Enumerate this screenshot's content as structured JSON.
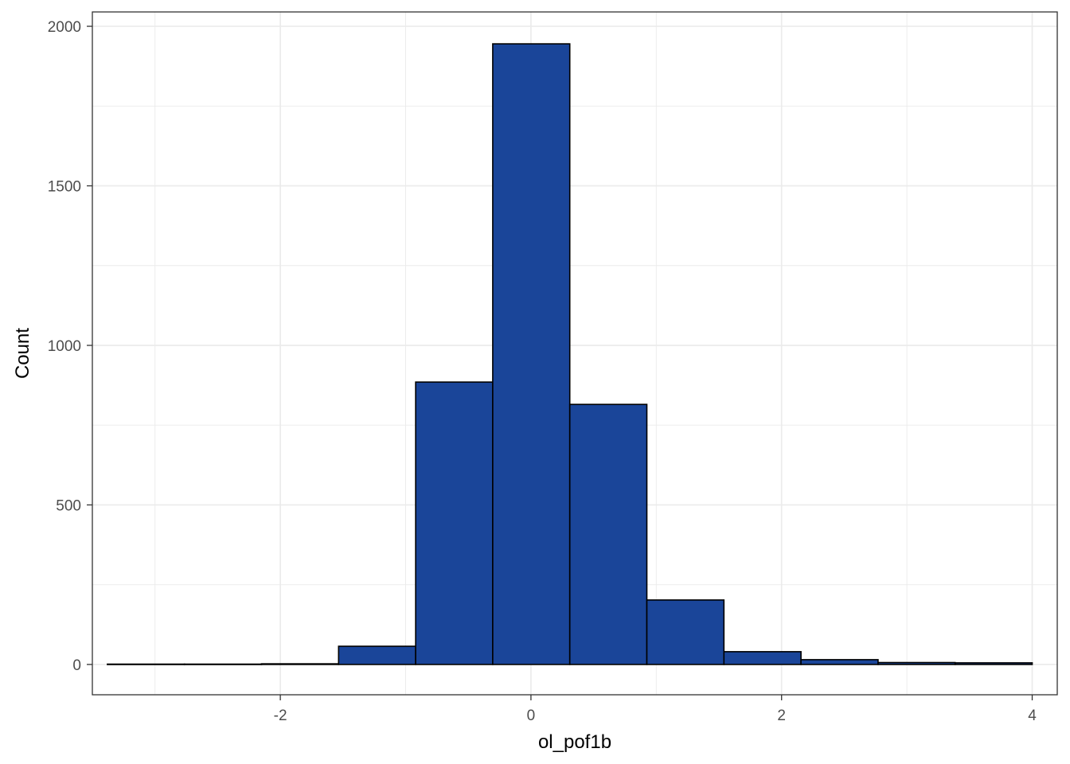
{
  "chart_data": {
    "type": "bar",
    "subtype": "histogram",
    "title": "",
    "xlabel": "ol_pof1b",
    "ylabel": "Count",
    "xlim": [
      -3.5,
      4.2
    ],
    "ylim": [
      -95,
      2045
    ],
    "x_ticks": [
      -2,
      0,
      2,
      4
    ],
    "x_tick_labels": [
      "-2",
      "0",
      "2",
      "4"
    ],
    "y_ticks": [
      0,
      500,
      1000,
      1500,
      2000
    ],
    "y_tick_labels": [
      "0",
      "500",
      "1000",
      "1500",
      "2000"
    ],
    "y_minor_ticks": [
      250,
      750,
      1250,
      1750
    ],
    "x_minor_ticks": [
      -3,
      -1,
      1,
      3
    ],
    "bin_edges": [
      -3.38,
      -2.765,
      -2.15,
      -1.535,
      -0.92,
      -0.305,
      0.31,
      0.925,
      1.54,
      2.155,
      2.77,
      3.385,
      4.0
    ],
    "counts": [
      1,
      1,
      2,
      57,
      885,
      1945,
      815,
      202,
      40,
      15,
      6,
      5
    ],
    "grid": true,
    "legend": "none",
    "colors": {
      "fill": "#1a4599",
      "outline": "#000000",
      "grid": "#ebebeb",
      "panel_border": "#333333",
      "tick_text": "#4d4d4d"
    }
  }
}
